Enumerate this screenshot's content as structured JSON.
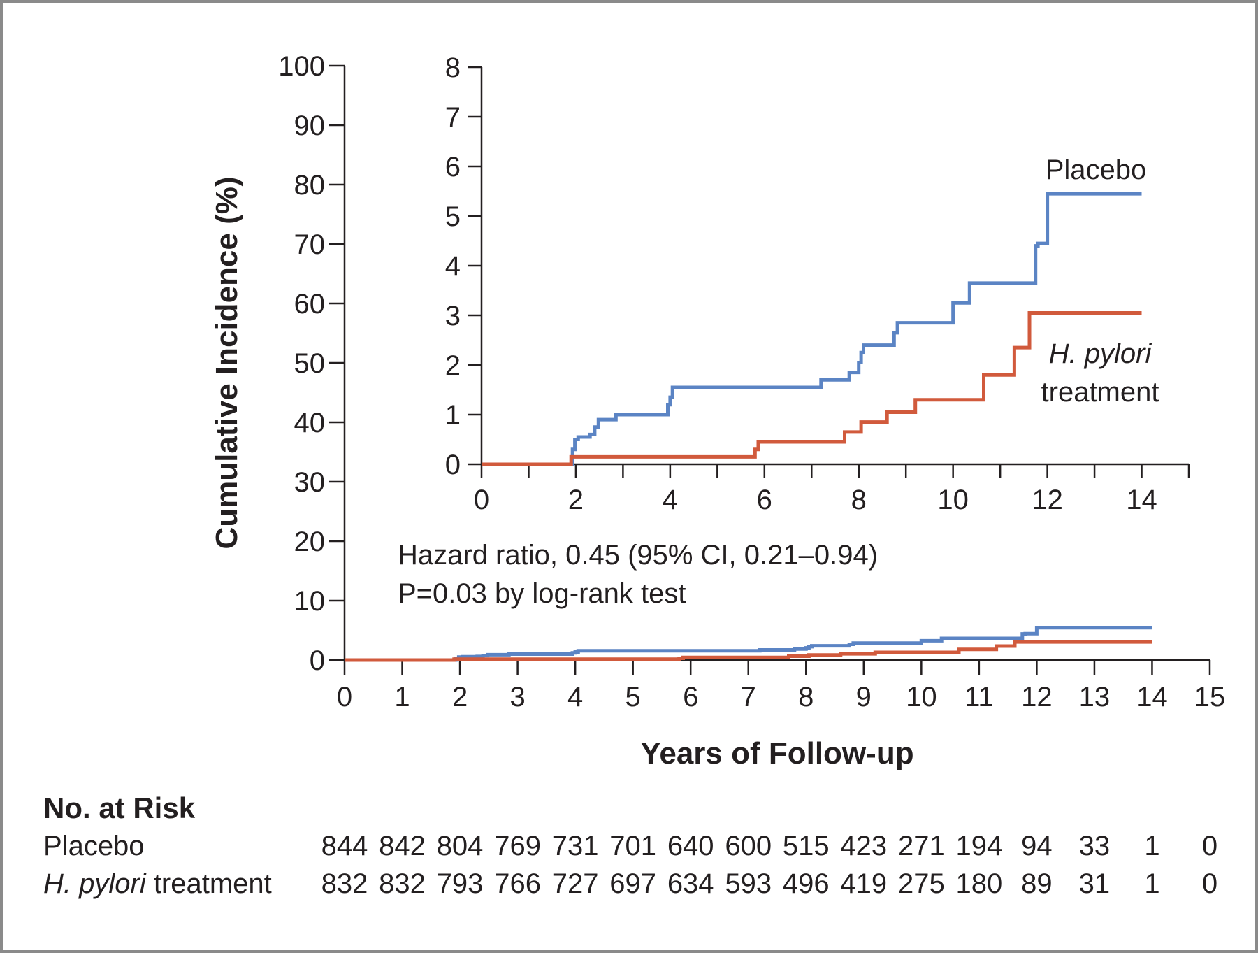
{
  "chart_data": [
    {
      "type": "line",
      "role": "main",
      "ylabel": "Cumulative Incidence (%)",
      "xlabel": "Years of Follow-up",
      "xlim": [
        0,
        15
      ],
      "ylim": [
        0,
        100
      ],
      "x_ticks": [
        0,
        1,
        2,
        3,
        4,
        5,
        6,
        7,
        8,
        9,
        10,
        11,
        12,
        13,
        14,
        15
      ],
      "y_ticks": [
        0,
        10,
        20,
        30,
        40,
        50,
        60,
        70,
        80,
        90,
        100
      ],
      "step": true,
      "series": [
        {
          "name": "Placebo",
          "color": "#5b84c4",
          "x": [
            0,
            1.93,
            1.98,
            2.05,
            2.3,
            2.4,
            2.48,
            2.85,
            3.95,
            4.0,
            4.05,
            7.2,
            7.8,
            8.0,
            8.05,
            8.1,
            8.75,
            8.82,
            10.0,
            10.35,
            11.75,
            11.8,
            12.0,
            14.0
          ],
          "y": [
            0,
            0.3,
            0.5,
            0.55,
            0.6,
            0.75,
            0.9,
            1.0,
            1.2,
            1.35,
            1.55,
            1.7,
            1.85,
            2.05,
            2.25,
            2.4,
            2.65,
            2.85,
            3.25,
            3.65,
            4.4,
            4.45,
            5.45,
            5.45
          ]
        },
        {
          "name": "H. pylori treatment",
          "color": "#d15a3c",
          "x": [
            0,
            1.9,
            5.8,
            5.87,
            7.7,
            8.05,
            8.6,
            9.2,
            10.65,
            11.3,
            11.62,
            14.0
          ],
          "y": [
            0,
            0.15,
            0.3,
            0.45,
            0.65,
            0.85,
            1.05,
            1.3,
            1.8,
            2.35,
            3.05,
            3.05
          ]
        }
      ]
    },
    {
      "type": "line",
      "role": "inset",
      "xlim": [
        0,
        15
      ],
      "ylim": [
        0,
        8
      ],
      "x_ticks": [
        0,
        2,
        4,
        6,
        8,
        10,
        12,
        14
      ],
      "y_ticks": [
        0,
        1,
        2,
        3,
        4,
        5,
        6,
        7,
        8
      ],
      "series_labels": {
        "placebo": "Placebo",
        "hp_line1": "H. pylori",
        "hp_line2": "treatment"
      }
    }
  ],
  "annotation": {
    "line1": "Hazard ratio, 0.45 (95% CI, 0.21–0.94)",
    "line2": "P=0.03 by log-rank test"
  },
  "risk_table": {
    "title": "No. at Risk",
    "years": [
      0,
      1,
      2,
      3,
      4,
      5,
      6,
      7,
      8,
      9,
      10,
      11,
      12,
      13,
      14,
      15
    ],
    "rows": [
      {
        "label": "Placebo",
        "italic_part": "",
        "values": [
          "844",
          "842",
          "804",
          "769",
          "731",
          "701",
          "640",
          "600",
          "515",
          "423",
          "271",
          "194",
          "94",
          "33",
          "1",
          "0"
        ]
      },
      {
        "label": " treatment",
        "italic_part": "H. pylori",
        "values": [
          "832",
          "832",
          "793",
          "766",
          "727",
          "697",
          "634",
          "593",
          "496",
          "419",
          "275",
          "180",
          "89",
          "31",
          "1",
          "0"
        ]
      }
    ]
  }
}
